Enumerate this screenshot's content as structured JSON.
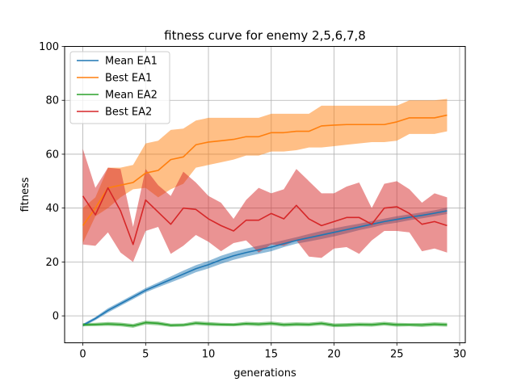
{
  "chart_data": {
    "type": "line",
    "title": "fitness curve for enemy 2,5,6,7,8",
    "xlabel": "generations",
    "ylabel": "fitness",
    "xlim": [
      -1.45,
      30.45
    ],
    "ylim": [
      -10,
      100
    ],
    "xticks": [
      0,
      5,
      10,
      15,
      20,
      25,
      30
    ],
    "yticks": [
      0,
      20,
      40,
      60,
      80,
      100
    ],
    "grid": true,
    "legend_position": "top-left",
    "x": [
      0,
      1,
      2,
      3,
      4,
      5,
      6,
      7,
      8,
      9,
      10,
      11,
      12,
      13,
      14,
      15,
      16,
      17,
      18,
      19,
      20,
      21,
      22,
      23,
      24,
      25,
      26,
      27,
      28,
      29
    ],
    "series": [
      {
        "name": "Mean EA1",
        "color": "#1f77b4",
        "values": [
          -3.5,
          -1,
          2,
          4.5,
          7,
          9.5,
          11.5,
          13.5,
          15.5,
          17.5,
          19,
          20.8,
          22.3,
          23.5,
          24.5,
          25.5,
          26.8,
          28,
          29,
          30,
          31,
          32,
          33,
          34,
          35,
          35.8,
          36.6,
          37.3,
          38.1,
          39
        ],
        "band_low": [
          -4,
          -1.6,
          1.2,
          3.7,
          6.2,
          8.7,
          10.6,
          12.4,
          14.2,
          16.2,
          17.6,
          19.3,
          20.8,
          22,
          23,
          24,
          25.5,
          26.8,
          27.6,
          28.5,
          29.5,
          30.6,
          31.8,
          32.8,
          33.9,
          34.6,
          35.5,
          36.2,
          37,
          37.8
        ],
        "band_high": [
          -3,
          -0.4,
          2.8,
          5.3,
          7.8,
          10.3,
          12.4,
          14.6,
          16.8,
          18.8,
          20.4,
          22.3,
          23.8,
          25,
          26,
          27,
          28.1,
          29.2,
          30.4,
          31.5,
          32.5,
          33.4,
          34.2,
          35.2,
          36.1,
          37,
          37.7,
          38.4,
          39.2,
          40.2
        ]
      },
      {
        "name": "Best EA1",
        "color": "#ff7f0e",
        "values": [
          33.5,
          40,
          47.5,
          48.5,
          49.5,
          53,
          54,
          58,
          59,
          63.5,
          64.5,
          65,
          65.5,
          66.5,
          66.5,
          68,
          68,
          68.5,
          68.5,
          70.5,
          70.8,
          71,
          71,
          71,
          71,
          72,
          73.5,
          73.5,
          73.5,
          74.5
        ],
        "band_low": [
          27,
          37,
          40,
          44,
          47,
          47.5,
          44,
          47,
          49,
          55,
          56,
          57,
          58,
          59.5,
          59.5,
          61,
          61,
          61.5,
          62.5,
          62.5,
          63,
          63.5,
          64,
          64.5,
          64.5,
          65,
          67.5,
          67.5,
          67.5,
          68.5
        ],
        "band_high": [
          40,
          44,
          55,
          55,
          56,
          64,
          65,
          69,
          69.5,
          72.5,
          73.5,
          73.5,
          73.5,
          73.5,
          73.5,
          75,
          75,
          75,
          75,
          78,
          78,
          78,
          78,
          78,
          78,
          78,
          80,
          80,
          80,
          80.5
        ]
      },
      {
        "name": "Mean EA2",
        "color": "#2ca02c",
        "values": [
          -3.3,
          -3.2,
          -3,
          -3.2,
          -3.7,
          -2.5,
          -2.8,
          -3.5,
          -3.4,
          -2.7,
          -3,
          -3.2,
          -3.3,
          -2.9,
          -3.1,
          -2.8,
          -3.3,
          -3.1,
          -3.2,
          -2.8,
          -3.5,
          -3.4,
          -3.2,
          -3.3,
          -2.9,
          -3.3,
          -3.3,
          -3.4,
          -3.1,
          -3.3
        ],
        "band_low": [
          -3.9,
          -3.8,
          -3.7,
          -3.9,
          -4.4,
          -3.2,
          -3.5,
          -4.1,
          -4,
          -3.4,
          -3.7,
          -3.8,
          -3.9,
          -3.6,
          -3.8,
          -3.5,
          -4,
          -3.8,
          -3.9,
          -3.5,
          -4.2,
          -4.1,
          -3.9,
          -4,
          -3.6,
          -4,
          -3.9,
          -4.1,
          -3.8,
          -4
        ],
        "band_high": [
          -2.7,
          -2.6,
          -2.3,
          -2.5,
          -3,
          -1.8,
          -2.1,
          -2.9,
          -2.8,
          -2,
          -2.3,
          -2.6,
          -2.7,
          -2.2,
          -2.4,
          -2.1,
          -2.6,
          -2.4,
          -2.5,
          -2.1,
          -2.8,
          -2.7,
          -2.5,
          -2.6,
          -2.2,
          -2.6,
          -2.7,
          -2.7,
          -2.4,
          -2.6
        ]
      },
      {
        "name": "Best EA2",
        "color": "#d62728",
        "values": [
          44.5,
          37.5,
          47.5,
          39,
          26.5,
          43,
          38.5,
          34,
          40,
          39.5,
          36,
          33.5,
          31.5,
          35.5,
          35.5,
          38,
          36,
          41,
          36,
          33.5,
          35,
          36.5,
          36.5,
          34,
          40,
          40.5,
          38,
          34,
          35,
          33.5
        ],
        "band_low": [
          26.5,
          26,
          31,
          23.5,
          20,
          31.5,
          33,
          23,
          26,
          30,
          27.5,
          24,
          27,
          28,
          23.5,
          26.5,
          26,
          28,
          22,
          21.5,
          25,
          25.5,
          23,
          28,
          31.5,
          31.5,
          31,
          24,
          25,
          23.5
        ],
        "band_high": [
          62,
          47.5,
          55,
          54.5,
          33,
          54.5,
          48.5,
          44.5,
          53.5,
          49.5,
          44.5,
          42,
          36,
          43,
          47.5,
          45.5,
          47,
          54.5,
          50,
          45.5,
          45.5,
          48,
          49.5,
          40,
          49,
          50,
          47,
          42,
          45.5,
          44
        ]
      }
    ]
  }
}
